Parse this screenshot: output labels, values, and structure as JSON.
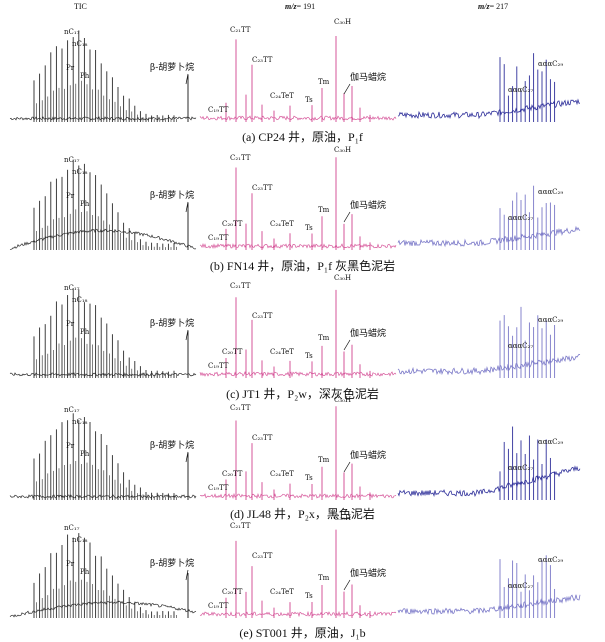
{
  "header": {
    "tic": "TIC",
    "m191_prefix": "m/z",
    "m191_value": "= 191",
    "m217_prefix": "m/z",
    "m217_value": "= 217"
  },
  "colors": {
    "tic": "#2a2a2a",
    "m191": "#d6569a",
    "m217": "#2e2f9a",
    "m217_light": "#7a78c8"
  },
  "panels": [
    {
      "caption": "(a) CP24 井，原油，P₁f",
      "labels": [
        "nC₁₇",
        "nC₁₈",
        "Pr",
        "Ph",
        "β-胡萝卜烷",
        "C₁₉TT",
        "C₂₁TT",
        "C₂₃TT",
        "C₂₄TeT",
        "Ts",
        "Tm",
        "C₃₀H",
        "伽马蜡烷",
        "αααC₂₇",
        "αααC₂₉"
      ]
    },
    {
      "caption": "(b) FN14 井，原油，P₁f 灰黑色泥岩",
      "labels": [
        "nC₁₇",
        "nC₁₈",
        "Pr",
        "Ph",
        "β-胡萝卜烷",
        "C₁₉TT",
        "C₂₀TT",
        "C₂₁TT",
        "C₂₃TT",
        "C₂₄TeT",
        "Ts",
        "Tm",
        "C₃₀H",
        "伽马蜡烷",
        "αααC₂₇",
        "αααC₂₉"
      ]
    },
    {
      "caption": "(c) JT1 井，P₂w，深灰色泥岩",
      "labels": [
        "nC₁₇",
        "nC₁₈",
        "Pr",
        "Ph",
        "β-胡萝卜烷",
        "C₁₉TT",
        "C₂₀TT",
        "C₂₁TT",
        "C₂₃TT",
        "C₂₄TeT",
        "Ts",
        "Tm",
        "C₃₀H",
        "伽马蜡烷",
        "αααC₂₇",
        "αααC₂₉"
      ]
    },
    {
      "caption": "(d) JL48 井，P₂x，黑色泥岩",
      "labels": [
        "nC₁₇",
        "nC₁₈",
        "Pr",
        "Ph",
        "β-胡萝卜烷",
        "C₁₉TT",
        "C₂₀TT",
        "C₂₁TT",
        "C₂₃TT",
        "C₂₄TeT",
        "Ts",
        "Tm",
        "C₃₀H",
        "伽马蜡烷",
        "αααC₂₇",
        "αααC₂₉"
      ]
    },
    {
      "caption": "(e) ST001 井，原油，J₁b",
      "labels": [
        "nC₁₇",
        "nC₁₈",
        "Pr",
        "Ph",
        "β-胡萝卜烷",
        "C₁₉TT",
        "C₂₀TT",
        "C₂₁TT",
        "C₂₃TT",
        "C₂₄TeT",
        "Ts",
        "Tm",
        "C₃₀H",
        "伽马蜡烷",
        "αααC₂₇",
        "αααC₂₉"
      ]
    }
  ]
}
